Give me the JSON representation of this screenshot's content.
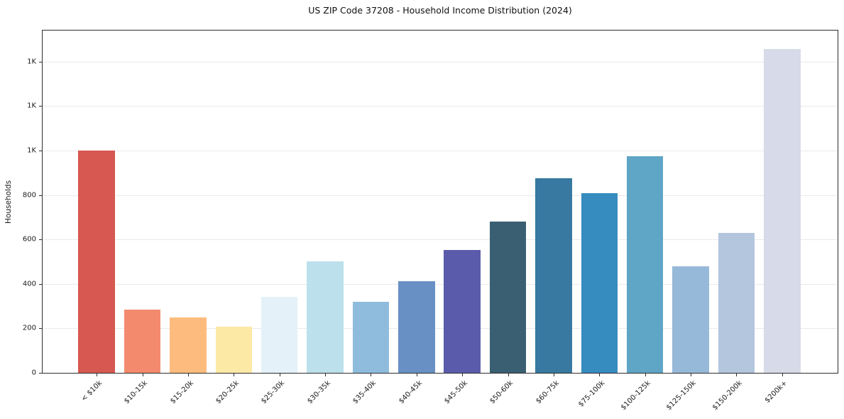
{
  "chart_data": {
    "type": "bar",
    "title": "US ZIP Code 37208 - Household Income Distribution (2024)",
    "xlabel": "",
    "ylabel": "Households",
    "categories": [
      "< $10k",
      "$10-15k",
      "$15-20k",
      "$20-25k",
      "$25-30k",
      "$30-35k",
      "$35-40k",
      "$40-45k",
      "$45-50k",
      "$50-60k",
      "$60-75k",
      "$75-100k",
      "$100-125k",
      "$125-150k",
      "$150-200k",
      "$200k+"
    ],
    "values": [
      1000,
      283,
      250,
      208,
      342,
      503,
      320,
      412,
      553,
      681,
      876,
      807,
      975,
      478,
      628,
      1457
    ],
    "bar_colors": [
      "#d65850",
      "#f48a6d",
      "#fdbc7e",
      "#fce9a6",
      "#e4f1f8",
      "#bce0ec",
      "#8fbcdc",
      "#6890c4",
      "#5a5cab",
      "#3a5f72",
      "#3779a1",
      "#368cbf",
      "#5fa5c6",
      "#97b9d9",
      "#b3c6de",
      "#d7dae8"
    ],
    "ylim": [
      0,
      1540
    ],
    "yticks": [
      0,
      200,
      400,
      600,
      800,
      1000,
      1200,
      1400
    ],
    "ytick_labels": [
      "0",
      "200",
      "400",
      "600",
      "800",
      "1K",
      "1K",
      "1K"
    ],
    "grid": "horizontal",
    "legend": "none",
    "background": "#ffffff",
    "text_color": "#1a1a1a",
    "grid_color": "#eaeaef",
    "spine_color": "#2e2e2e"
  }
}
